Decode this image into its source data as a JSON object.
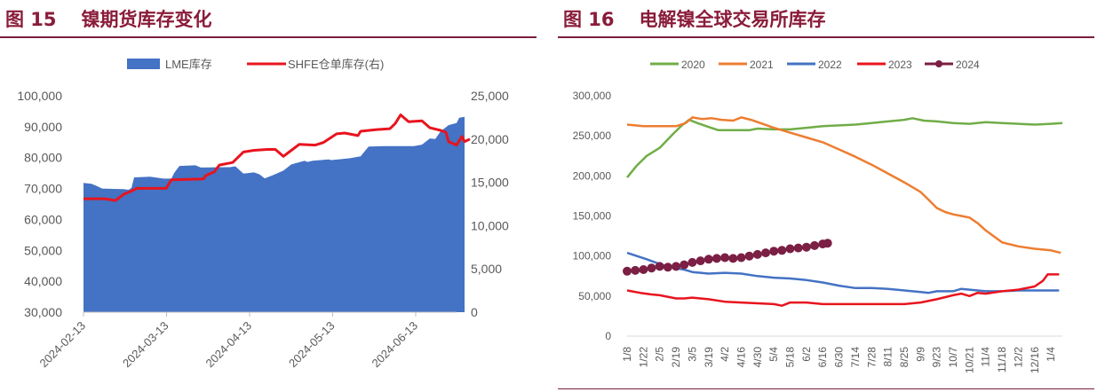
{
  "panels": {
    "left": {
      "fig": "图 15",
      "title": "镍期货库存变化"
    },
    "right": {
      "fig": "图 16",
      "title": "电解镍全球交易所库存"
    }
  },
  "chart_data": [
    {
      "type": "area+line",
      "title": "镍期货库存变化",
      "legend": [
        "LME库存",
        "SHFE仓单库存(右)"
      ],
      "legend_placement": "top-center",
      "x_tick_labels": [
        "2024-02-13",
        "2024-03-13",
        "2024-04-13",
        "2024-05-13",
        "2024-06-13"
      ],
      "y_left_ticks": [
        "30,000",
        "40,000",
        "50,000",
        "60,000",
        "70,000",
        "80,000",
        "90,000",
        "100,000"
      ],
      "y_left_range": [
        30000,
        100000
      ],
      "y_right_ticks": [
        "0",
        "5,000",
        "10,000",
        "15,000",
        "20,000",
        "25,000"
      ],
      "y_right_range": [
        0,
        25000
      ],
      "x_range": [
        0,
        140
      ],
      "series": [
        {
          "name": "LME库存",
          "kind": "area",
          "axis": "left",
          "color": "#4472c4",
          "points": [
            [
              0,
              71800
            ],
            [
              3,
              71500
            ],
            [
              5,
              70800
            ],
            [
              7,
              70000
            ],
            [
              15,
              69800
            ],
            [
              17,
              69600
            ],
            [
              18,
              70200
            ],
            [
              19,
              73600
            ],
            [
              25,
              73800
            ],
            [
              30,
              73200
            ],
            [
              33,
              73200
            ],
            [
              34,
              75000
            ],
            [
              36,
              77300
            ],
            [
              42,
              77500
            ],
            [
              44,
              76800
            ],
            [
              55,
              76900
            ],
            [
              57,
              77200
            ],
            [
              60,
              74800
            ],
            [
              64,
              75200
            ],
            [
              66,
              74600
            ],
            [
              68,
              73300
            ],
            [
              71,
              74300
            ],
            [
              75,
              75800
            ],
            [
              78,
              77800
            ],
            [
              83,
              79000
            ],
            [
              84,
              78600
            ],
            [
              86,
              79000
            ],
            [
              92,
              79400
            ],
            [
              93,
              79200
            ],
            [
              100,
              79800
            ],
            [
              104,
              80400
            ],
            [
              105,
              81500
            ],
            [
              107,
              83600
            ],
            [
              113,
              83700
            ],
            [
              124,
              83700
            ],
            [
              127,
              84200
            ],
            [
              130,
              86200
            ],
            [
              132,
              86000
            ],
            [
              134,
              88500
            ],
            [
              137,
              90500
            ],
            [
              140,
              91200
            ],
            [
              141,
              92900
            ],
            [
              143,
              93200
            ]
          ]
        },
        {
          "name": "SHFE仓单库存(右)",
          "kind": "line",
          "axis": "right",
          "color": "#e8141e",
          "points": [
            [
              0,
              13100
            ],
            [
              8,
              13100
            ],
            [
              12,
              12900
            ],
            [
              15,
              13600
            ],
            [
              18,
              14000
            ],
            [
              20,
              14300
            ],
            [
              25,
              14300
            ],
            [
              31,
              14300
            ],
            [
              33,
              15300
            ],
            [
              45,
              15400
            ],
            [
              46,
              15800
            ],
            [
              49,
              16200
            ],
            [
              51,
              17000
            ],
            [
              56,
              17300
            ],
            [
              60,
              18500
            ],
            [
              64,
              18700
            ],
            [
              69,
              18800
            ],
            [
              72,
              18800
            ],
            [
              75,
              18000
            ],
            [
              78,
              18700
            ],
            [
              81,
              19400
            ],
            [
              87,
              19300
            ],
            [
              90,
              19600
            ],
            [
              95,
              20600
            ],
            [
              98,
              20700
            ],
            [
              103,
              20400
            ],
            [
              104,
              20900
            ],
            [
              110,
              21100
            ],
            [
              115,
              21200
            ],
            [
              117,
              21800
            ],
            [
              119,
              22800
            ],
            [
              122,
              22000
            ],
            [
              127,
              22100
            ],
            [
              130,
              21300
            ],
            [
              134,
              21000
            ],
            [
              136,
              20800
            ],
            [
              137,
              19700
            ],
            [
              140,
              19300
            ],
            [
              142,
              20300
            ],
            [
              143,
              19700
            ],
            [
              145,
              20000
            ]
          ]
        }
      ]
    },
    {
      "type": "line",
      "title": "电解镍全球交易所库存",
      "legend": [
        "2020",
        "2021",
        "2022",
        "2023",
        "2024"
      ],
      "legend_placement": "top-center",
      "x_tick_labels": [
        "1/8",
        "1/22",
        "2/5",
        "2/19",
        "3/5",
        "3/19",
        "4/2",
        "4/16",
        "4/30",
        "5/4",
        "5/18",
        "6/2",
        "6/16",
        "6/30",
        "7/14",
        "7/28",
        "8/11",
        "8/25",
        "9/9",
        "9/23",
        "10/7",
        "10/21",
        "11/4",
        "11/18",
        "12/2",
        "12/16",
        "1/4"
      ],
      "y_ticks": [
        "0",
        "50,000",
        "100,000",
        "150,000",
        "200,000",
        "250,000",
        "300,000"
      ],
      "y_range": [
        0,
        300000
      ],
      "x_range": [
        0,
        26.7
      ],
      "series": [
        {
          "name": "2020",
          "color": "#70ad47",
          "points": [
            [
              0,
              198000
            ],
            [
              0.6,
              213000
            ],
            [
              1.2,
              225000
            ],
            [
              2,
              235000
            ],
            [
              2.8,
              252000
            ],
            [
              3.3,
              262000
            ],
            [
              3.8,
              270000
            ],
            [
              4.3,
              266000
            ],
            [
              5,
              261000
            ],
            [
              5.6,
              257000
            ],
            [
              6.5,
              257000
            ],
            [
              7.5,
              257000
            ],
            [
              8,
              259000
            ],
            [
              9,
              258000
            ],
            [
              10,
              258000
            ],
            [
              11,
              260000
            ],
            [
              12,
              262000
            ],
            [
              13,
              263000
            ],
            [
              14,
              264000
            ],
            [
              15,
              266000
            ],
            [
              16,
              268000
            ],
            [
              17,
              270000
            ],
            [
              17.5,
              272000
            ],
            [
              18.2,
              269000
            ],
            [
              19,
              268000
            ],
            [
              20,
              266000
            ],
            [
              21,
              265000
            ],
            [
              22,
              267000
            ],
            [
              23,
              266000
            ],
            [
              24,
              265000
            ],
            [
              25,
              264000
            ],
            [
              26,
              265000
            ],
            [
              26.7,
              266000
            ]
          ]
        },
        {
          "name": "2021",
          "color": "#ed7d31",
          "points": [
            [
              0,
              264000
            ],
            [
              1,
              262000
            ],
            [
              2,
              262000
            ],
            [
              3,
              262000
            ],
            [
              3.6,
              266000
            ],
            [
              4,
              273000
            ],
            [
              4.6,
              271000
            ],
            [
              5.2,
              272000
            ],
            [
              5.8,
              270000
            ],
            [
              6.5,
              269000
            ],
            [
              7,
              273000
            ],
            [
              7.6,
              270000
            ],
            [
              8.3,
              265000
            ],
            [
              9,
              260000
            ],
            [
              10,
              254000
            ],
            [
              11,
              248000
            ],
            [
              12,
              242000
            ],
            [
              13,
              233000
            ],
            [
              14,
              224000
            ],
            [
              15,
              214000
            ],
            [
              16,
              203000
            ],
            [
              17,
              192000
            ],
            [
              18,
              180000
            ],
            [
              18.5,
              170000
            ],
            [
              19,
              160000
            ],
            [
              19.5,
              155000
            ],
            [
              20,
              152000
            ],
            [
              20.5,
              150000
            ],
            [
              21,
              148000
            ],
            [
              21.5,
              141000
            ],
            [
              22,
              132000
            ],
            [
              22.6,
              123000
            ],
            [
              23,
              117000
            ],
            [
              24,
              112000
            ],
            [
              25,
              109000
            ],
            [
              26,
              107000
            ],
            [
              26.6,
              104000
            ]
          ]
        },
        {
          "name": "2022",
          "color": "#4472c4",
          "points": [
            [
              0,
              104000
            ],
            [
              0.6,
              100000
            ],
            [
              1.2,
              96000
            ],
            [
              2,
              90000
            ],
            [
              2.6,
              86000
            ],
            [
              3.5,
              83000
            ],
            [
              4,
              80000
            ],
            [
              5,
              78000
            ],
            [
              6,
              79000
            ],
            [
              7,
              78000
            ],
            [
              8,
              75000
            ],
            [
              9,
              73000
            ],
            [
              10,
              72000
            ],
            [
              11,
              70000
            ],
            [
              12,
              67000
            ],
            [
              13,
              63000
            ],
            [
              14,
              60000
            ],
            [
              15,
              60000
            ],
            [
              16,
              59000
            ],
            [
              17,
              57000
            ],
            [
              18,
              55000
            ],
            [
              18.5,
              54000
            ],
            [
              19,
              56000
            ],
            [
              20,
              56000
            ],
            [
              20.5,
              59000
            ],
            [
              21,
              58000
            ],
            [
              22,
              56000
            ],
            [
              23,
              56000
            ],
            [
              24,
              57000
            ],
            [
              25,
              57000
            ],
            [
              26,
              57000
            ],
            [
              26.5,
              57000
            ]
          ]
        },
        {
          "name": "2023",
          "color": "#e8141e",
          "points": [
            [
              0,
              57000
            ],
            [
              0.8,
              54000
            ],
            [
              1.5,
              52000
            ],
            [
              2,
              51000
            ],
            [
              3,
              47000
            ],
            [
              3.5,
              47000
            ],
            [
              4,
              48000
            ],
            [
              5,
              46000
            ],
            [
              6,
              43000
            ],
            [
              7,
              42000
            ],
            [
              8,
              41000
            ],
            [
              9,
              40000
            ],
            [
              9.5,
              38000
            ],
            [
              10,
              42000
            ],
            [
              11,
              42000
            ],
            [
              12,
              40000
            ],
            [
              13,
              40000
            ],
            [
              14,
              40000
            ],
            [
              15,
              40000
            ],
            [
              16,
              40000
            ],
            [
              17,
              40000
            ],
            [
              18,
              42000
            ],
            [
              19,
              46000
            ],
            [
              20,
              51000
            ],
            [
              20.5,
              53000
            ],
            [
              21,
              50000
            ],
            [
              21.5,
              54000
            ],
            [
              22,
              53000
            ],
            [
              23,
              56000
            ],
            [
              24,
              58000
            ],
            [
              25,
              62000
            ],
            [
              25.5,
              69000
            ],
            [
              25.8,
              77000
            ],
            [
              26.5,
              77000
            ]
          ]
        },
        {
          "name": "2024",
          "color": "#7b1f44",
          "marker": true,
          "points": [
            [
              0,
              81000
            ],
            [
              0.5,
              82000
            ],
            [
              1,
              83000
            ],
            [
              1.5,
              85000
            ],
            [
              2,
              87000
            ],
            [
              2.5,
              86000
            ],
            [
              3,
              87000
            ],
            [
              3.5,
              89000
            ],
            [
              4,
              92000
            ],
            [
              4.5,
              94000
            ],
            [
              5,
              96000
            ],
            [
              5.5,
              97000
            ],
            [
              6,
              98000
            ],
            [
              6.5,
              97000
            ],
            [
              7,
              98000
            ],
            [
              7.5,
              100000
            ],
            [
              8,
              102000
            ],
            [
              8.5,
              104000
            ],
            [
              9,
              106000
            ],
            [
              9.5,
              107000
            ],
            [
              10,
              109000
            ],
            [
              10.5,
              110000
            ],
            [
              11,
              111000
            ],
            [
              11.5,
              113000
            ],
            [
              12,
              115000
            ],
            [
              12.3,
              116000
            ]
          ]
        }
      ]
    }
  ]
}
